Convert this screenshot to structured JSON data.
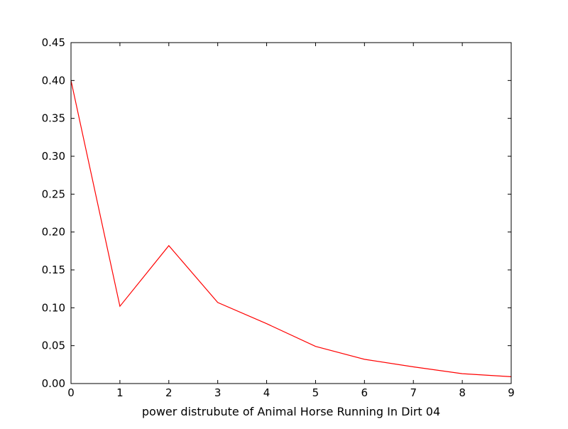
{
  "chart_data": {
    "type": "line",
    "title": "",
    "xlabel": "power distrubute of Animal Horse Running In Dirt 04",
    "ylabel": "",
    "xlim": [
      0,
      9
    ],
    "ylim": [
      0,
      0.45
    ],
    "x_ticks": [
      "0",
      "1",
      "2",
      "3",
      "4",
      "5",
      "6",
      "7",
      "8",
      "9"
    ],
    "y_ticks": [
      "0.00",
      "0.05",
      "0.10",
      "0.15",
      "0.20",
      "0.25",
      "0.30",
      "0.35",
      "0.40",
      "0.45"
    ],
    "grid": false,
    "legend": "none",
    "series": [
      {
        "color": "#ff0000",
        "x": [
          0,
          1,
          2,
          3,
          4,
          5,
          6,
          7,
          8,
          9
        ],
        "y": [
          0.4,
          0.102,
          0.182,
          0.107,
          0.079,
          0.049,
          0.032,
          0.022,
          0.013,
          0.009
        ]
      }
    ]
  }
}
